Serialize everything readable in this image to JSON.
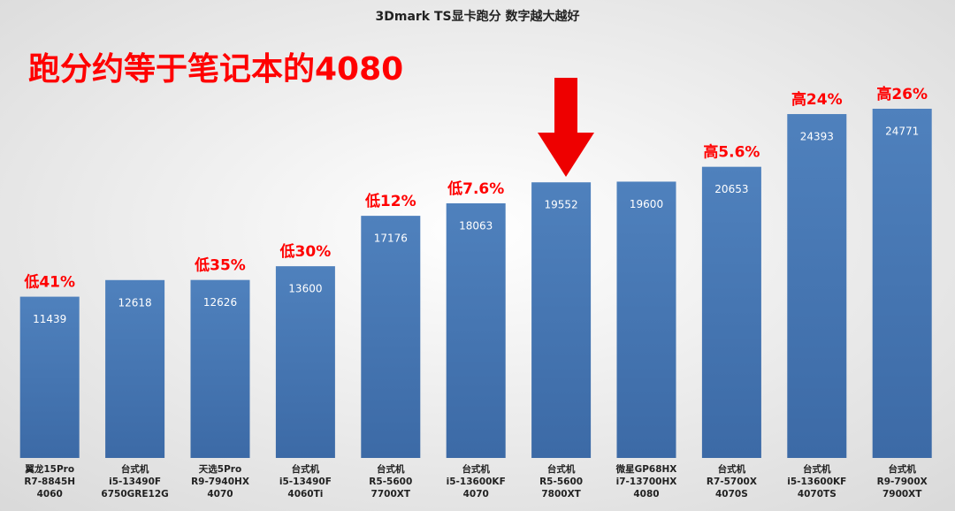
{
  "chart_data": {
    "type": "bar",
    "title": "3Dmark TS显卡跑分 数字越大越好",
    "headline": "跑分约等于笔记本的4080",
    "categories": [
      [
        "翼龙15Pro",
        "R7-8845H",
        "4060"
      ],
      [
        "台式机",
        "i5-13490F",
        "6750GRE12G"
      ],
      [
        "天选5Pro",
        "R9-7940HX",
        "4070"
      ],
      [
        "台式机",
        "i5-13490F",
        "4060Ti"
      ],
      [
        "台式机",
        "R5-5600",
        "7700XT"
      ],
      [
        "台式机",
        "i5-13600KF",
        "4070"
      ],
      [
        "台式机",
        "R5-5600",
        "7800XT"
      ],
      [
        "微星GP68HX",
        "i7-13700HX",
        "4080"
      ],
      [
        "台式机",
        "R7-5700X",
        "4070S"
      ],
      [
        "台式机",
        "i5-13600KF",
        "4070TS"
      ],
      [
        "台式机",
        "R9-7900X",
        "7900XT"
      ]
    ],
    "values": [
      11439,
      12618,
      12626,
      13600,
      17176,
      18063,
      19552,
      19600,
      20653,
      24393,
      24771
    ],
    "annotations": [
      "低41%",
      null,
      "低35%",
      "低30%",
      "低12%",
      "低7.6%",
      null,
      null,
      "高5.6%",
      "高24%",
      "高26%"
    ],
    "color": "#4f81bd"
  }
}
